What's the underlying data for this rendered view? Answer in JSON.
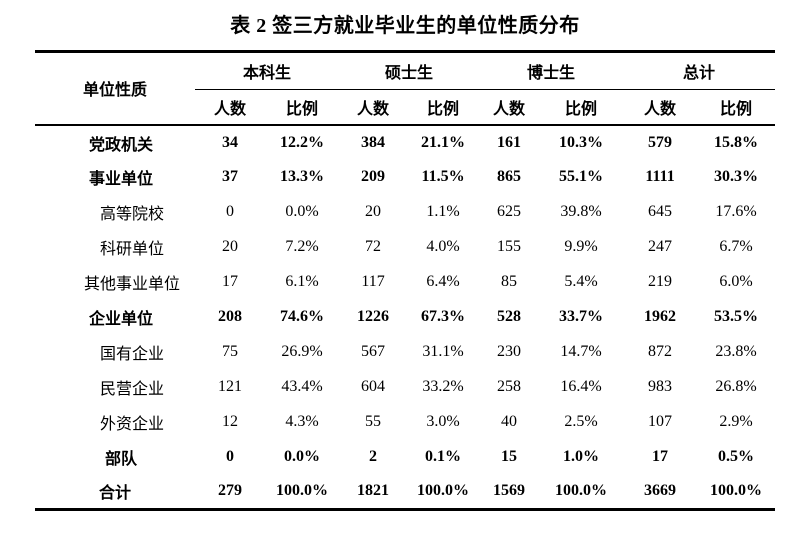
{
  "page": {
    "title": "表 2 签三方就业毕业生的单位性质分布"
  },
  "table": {
    "corner_header": "单位性质",
    "group_labels": [
      "本科生",
      "硕士生",
      "博士生",
      "总计"
    ],
    "subheader_labels": [
      "人数",
      "比例",
      "人数",
      "比例",
      "人数",
      "比例",
      "人数",
      "比例"
    ],
    "rows": [
      {
        "label": "党政机关",
        "level": 0,
        "bold": true,
        "values": [
          "34",
          "12.2%",
          "384",
          "21.1%",
          "161",
          "10.3%",
          "579",
          "15.8%"
        ]
      },
      {
        "label": "事业单位",
        "level": 0,
        "bold": true,
        "values": [
          "37",
          "13.3%",
          "209",
          "11.5%",
          "865",
          "55.1%",
          "1111",
          "30.3%"
        ]
      },
      {
        "label": "高等院校",
        "level": 1,
        "bold": false,
        "values": [
          "0",
          "0.0%",
          "20",
          "1.1%",
          "625",
          "39.8%",
          "645",
          "17.6%"
        ]
      },
      {
        "label": "科研单位",
        "level": 1,
        "bold": false,
        "values": [
          "20",
          "7.2%",
          "72",
          "4.0%",
          "155",
          "9.9%",
          "247",
          "6.7%"
        ]
      },
      {
        "label": "其他事业单位",
        "level": 1,
        "bold": false,
        "values": [
          "17",
          "6.1%",
          "117",
          "6.4%",
          "85",
          "5.4%",
          "219",
          "6.0%"
        ]
      },
      {
        "label": "企业单位",
        "level": 0,
        "bold": true,
        "values": [
          "208",
          "74.6%",
          "1226",
          "67.3%",
          "528",
          "33.7%",
          "1962",
          "53.5%"
        ]
      },
      {
        "label": "国有企业",
        "level": 1,
        "bold": false,
        "values": [
          "75",
          "26.9%",
          "567",
          "31.1%",
          "230",
          "14.7%",
          "872",
          "23.8%"
        ]
      },
      {
        "label": "民营企业",
        "level": 1,
        "bold": false,
        "values": [
          "121",
          "43.4%",
          "604",
          "33.2%",
          "258",
          "16.4%",
          "983",
          "26.8%"
        ]
      },
      {
        "label": "外资企业",
        "level": 1,
        "bold": false,
        "values": [
          "12",
          "4.3%",
          "55",
          "3.0%",
          "40",
          "2.5%",
          "107",
          "2.9%"
        ]
      },
      {
        "label": "部队",
        "level": 0,
        "bold": true,
        "values": [
          "0",
          "0.0%",
          "2",
          "0.1%",
          "15",
          "1.0%",
          "17",
          "0.5%"
        ]
      },
      {
        "label": "合计",
        "level": "total",
        "bold": true,
        "values": [
          "279",
          "100.0%",
          "1821",
          "100.0%",
          "1569",
          "100.0%",
          "3669",
          "100.0%"
        ]
      }
    ],
    "colors": {
      "text": "#000000",
      "border": "#000000",
      "background": "#ffffff"
    }
  }
}
